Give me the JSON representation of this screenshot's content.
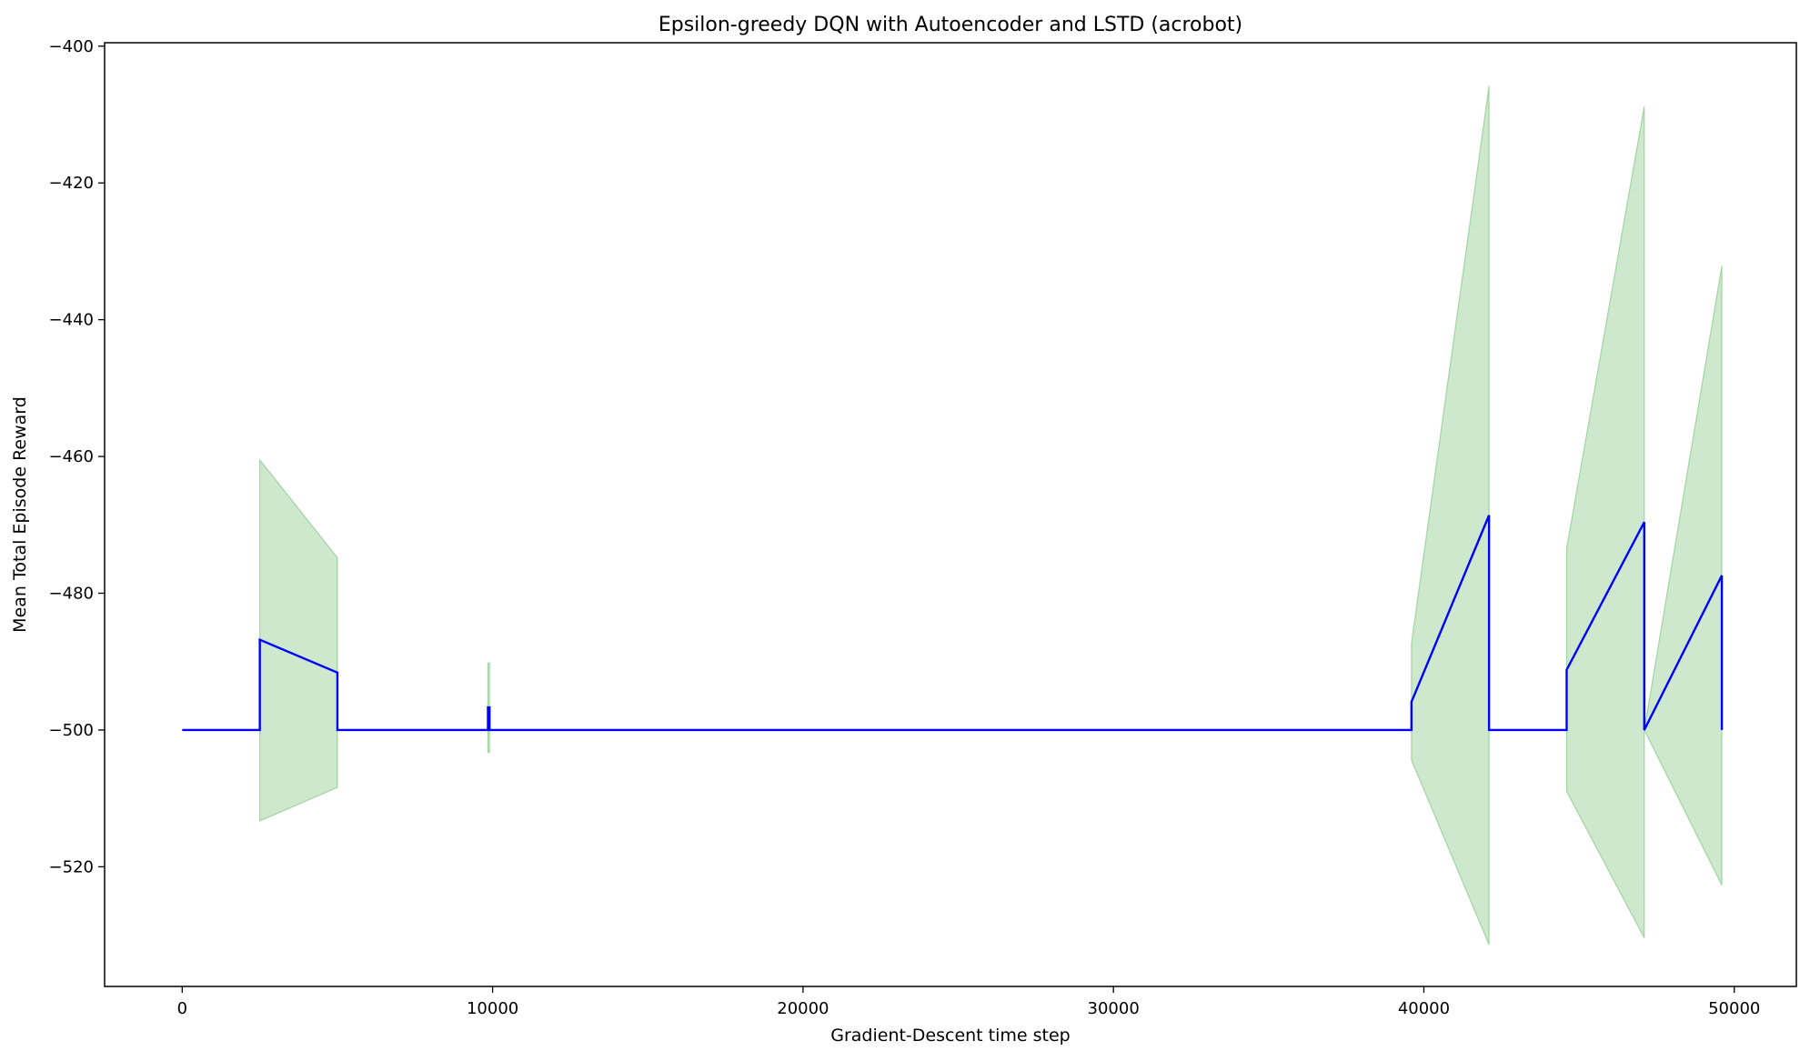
{
  "chart_data": {
    "type": "line",
    "title": "Epsilon-greedy DQN with Autoencoder and LSTD (acrobot)",
    "xlabel": "Gradient-Descent time step",
    "ylabel": "Mean Total Episode Reward",
    "xlim": [
      -2500,
      52000
    ],
    "ylim": [
      -537.5,
      -399.5
    ],
    "xticks": [
      0,
      10000,
      20000,
      30000,
      40000,
      50000
    ],
    "xtick_labels": [
      "0",
      "10000",
      "20000",
      "30000",
      "40000",
      "50000"
    ],
    "yticks": [
      -520,
      -500,
      -480,
      -460,
      -440,
      -420,
      -400
    ],
    "ytick_labels": [
      "−520",
      "−500",
      "−480",
      "−460",
      "−440",
      "−420",
      "−400"
    ],
    "grid": false,
    "colors": {
      "mean_line": "#0000ff",
      "band": "#2ca02c"
    },
    "mean": {
      "x": [
        0,
        2500,
        2500,
        5000,
        5000,
        9850,
        9850,
        9900,
        9900,
        39600,
        39600,
        42100,
        42100,
        44600,
        44600,
        47100,
        47100,
        49600,
        49600
      ],
      "y": [
        -500,
        -500,
        -486.8,
        -491.6,
        -500,
        -500,
        -496.7,
        -496.7,
        -500,
        -500,
        -495.9,
        -468.6,
        -500,
        -500,
        -491.2,
        -469.6,
        -500,
        -477.4,
        -500
      ]
    },
    "band": [
      {
        "x": [
          2500,
          5000
        ],
        "upper": [
          -460.5,
          -474.8
        ],
        "lower": [
          -513.3,
          -508.4
        ]
      },
      {
        "x": [
          9850,
          9900
        ],
        "upper": [
          -490.2,
          -490.2
        ],
        "lower": [
          -503.3,
          -503.3
        ]
      },
      {
        "x": [
          39600,
          42100
        ],
        "upper": [
          -487.3,
          -405.8
        ],
        "lower": [
          -504.4,
          -531.4
        ]
      },
      {
        "x": [
          44600,
          47100
        ],
        "upper": [
          -473.4,
          -408.8
        ],
        "lower": [
          -509.0,
          -530.4
        ]
      },
      {
        "x": [
          47100,
          49600
        ],
        "upper": [
          -500,
          -432.1
        ],
        "lower": [
          -500,
          -522.7
        ]
      }
    ]
  }
}
